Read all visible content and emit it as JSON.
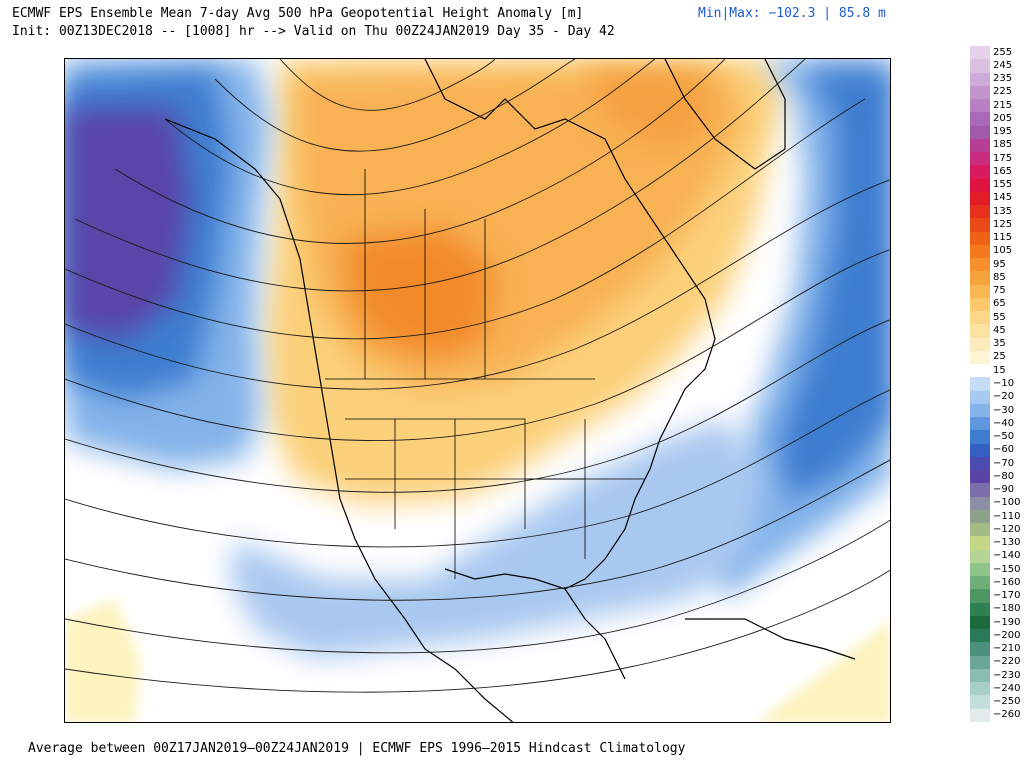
{
  "header": {
    "title_line1": "ECMWF EPS Ensemble Mean 7-day Avg 500 hPa Geopotential Height Anomaly [m]",
    "minmax": "Min|Max: −102.3 | 85.8 m",
    "title_line2": "Init: 00Z13DEC2018 -- [1008] hr --> Valid on Thu 00Z24JAN2019  Day 35 - Day 42"
  },
  "footer": {
    "text": "Average between 00Z17JAN2019–00Z24JAN2019 | ECMWF EPS 1996–2015 Hindcast Climatology"
  },
  "colorbar": {
    "labels": [
      "255",
      "245",
      "235",
      "225",
      "215",
      "205",
      "195",
      "185",
      "175",
      "165",
      "155",
      "145",
      "135",
      "125",
      "115",
      "105",
      "95",
      "85",
      "75",
      "65",
      "55",
      "45",
      "35",
      "25",
      "15",
      "−10",
      "−20",
      "−30",
      "−40",
      "−50",
      "−60",
      "−70",
      "−80",
      "−90",
      "−100",
      "−110",
      "−120",
      "−130",
      "−140",
      "−150",
      "−160",
      "−170",
      "−180",
      "−190",
      "−200",
      "−210",
      "−220",
      "−230",
      "−240",
      "−250",
      "−260"
    ],
    "colors": [
      "#e6d2ea",
      "#dcc0e2",
      "#d0aad8",
      "#c495cd",
      "#b880c4",
      "#a96bb9",
      "#a05aa8",
      "#b63e95",
      "#c82a7e",
      "#d81b5e",
      "#e0123f",
      "#e41b28",
      "#e5301c",
      "#ea4a18",
      "#ef6216",
      "#f37a1c",
      "#f68f2a",
      "#f7a33c",
      "#f9b652",
      "#fbc86c",
      "#fcd787",
      "#fde3a2",
      "#fdecbb",
      "#fdf4d4",
      "#ffffff",
      "#c5dcf6",
      "#a6c9f1",
      "#84b3ea",
      "#5f97de",
      "#3e7dd0",
      "#3360c2",
      "#4a4cb0",
      "#5c43a6",
      "#7a6fa8",
      "#8a8fa4",
      "#8da08a",
      "#a4bb85",
      "#c2d887",
      "#b5d495",
      "#8fc48b",
      "#6fae78",
      "#4e9664",
      "#2e8050",
      "#1c6a3e",
      "#2a7a58",
      "#4a907a",
      "#6aa696",
      "#8abcb0",
      "#a8d0c8",
      "#c4dede",
      "#e2eceb"
    ]
  },
  "map": {
    "strong_positive_color": "#f28a2a",
    "positive_color": "#fbd07a",
    "weak_positive_color": "#fdf3bf",
    "negative_color": "#a9c8f0",
    "strong_negative_color": "#3570d0",
    "deepest_negative_color": "#5a45a8"
  }
}
